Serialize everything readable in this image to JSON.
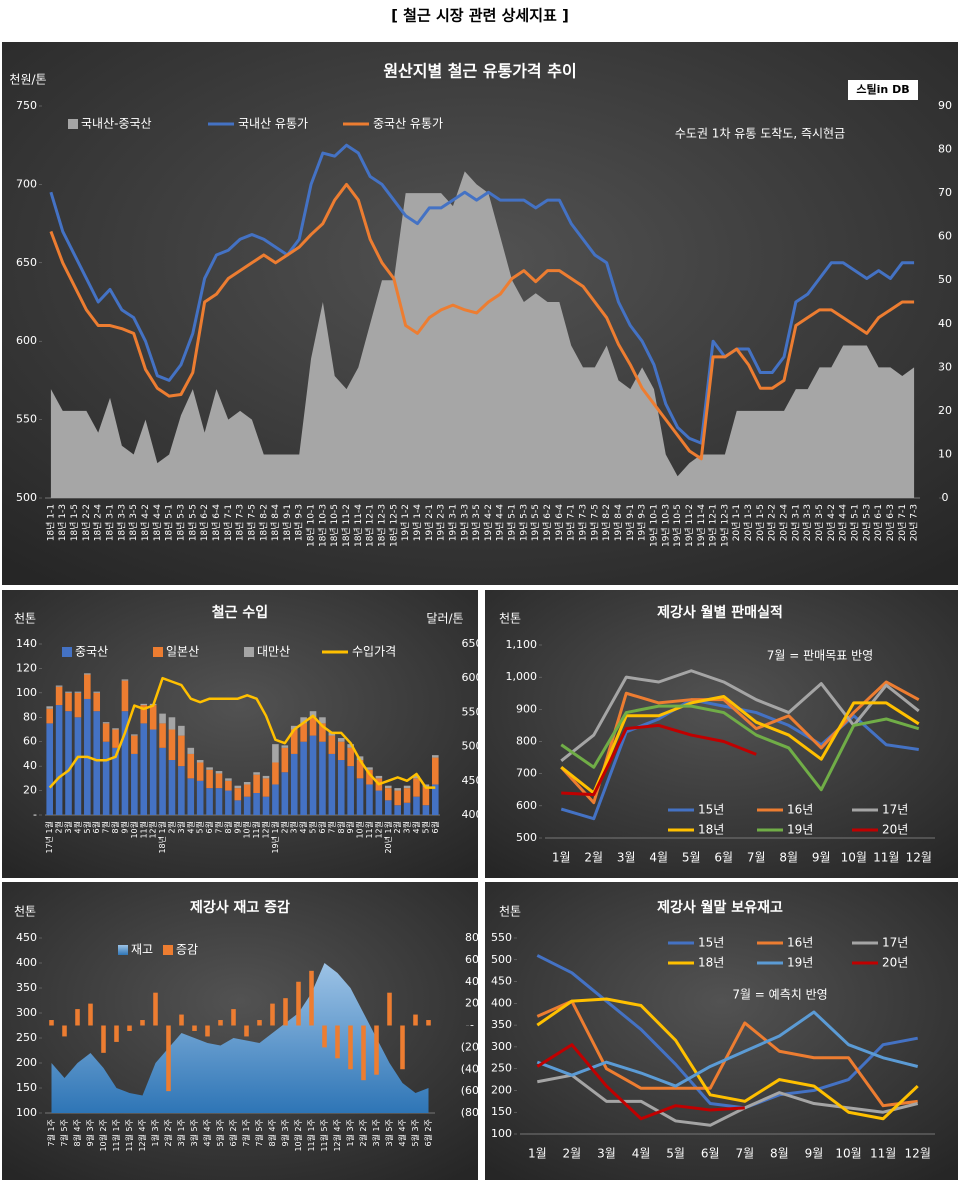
{
  "title": "[ 철근 시장 관련 상세지표 ]",
  "chart_data": [
    {
      "type": "combo",
      "title": "원산지별 철근 유통가격 추이",
      "y_label": "천원/톤",
      "logo": "스틸in DB",
      "annotations": [
        "수도권 1차 유통 도착도, 즉시현금"
      ],
      "categories": [
        "18년 1-1",
        "18년 1-3",
        "18년 1-5",
        "18년 2-2",
        "18년 2-4",
        "18년 3-1",
        "18년 3-3",
        "18년 3-5",
        "18년 4-2",
        "18년 4-4",
        "18년 5-1",
        "18년 5-3",
        "18년 5-5",
        "18년 6-2",
        "18년 6-4",
        "18년 7-1",
        "18년 7-3",
        "18년 7-5",
        "18년 8-2",
        "18년 8-4",
        "18년 9-1",
        "18년 9-3",
        "18년 10-1",
        "18년 10-3",
        "18년 10-5",
        "18년 11-2",
        "18년 11-4",
        "18년 12-1",
        "18년 12-3",
        "18년 12-5",
        "19년 1-2",
        "19년 1-4",
        "19년 2-1",
        "19년 2-3",
        "19년 3-1",
        "19년 3-3",
        "19년 3-5",
        "19년 4-2",
        "19년 4-4",
        "19년 5-1",
        "19년 5-3",
        "19년 5-5",
        "19년 6-2",
        "19년 6-4",
        "19년 7-1",
        "19년 7-3",
        "19년 7-5",
        "19년 8-2",
        "19년 8-4",
        "19년 9-1",
        "19년 9-3",
        "19년 10-1",
        "19년 10-3",
        "19년 10-5",
        "19년 11-2",
        "19년 11-4",
        "19년 12-1",
        "19년 12-3",
        "20년 1-1",
        "20년 1-3",
        "20년 1-5",
        "20년 2-2",
        "20년 2-4",
        "20년 3-1",
        "20년 3-3",
        "20년 3-5",
        "20년 4-2",
        "20년 4-4",
        "20년 5-1",
        "20년 5-3",
        "20년 6-1",
        "20년 6-3",
        "20년 7-1",
        "20년 7-3"
      ],
      "series": [
        {
          "name": "국내산-중국산",
          "kind": "area",
          "axis": "y2",
          "color": "#a6a6a6",
          "values": [
            25,
            20,
            20,
            20,
            15,
            23,
            12,
            10,
            18,
            8,
            10,
            19,
            25,
            15,
            25,
            18,
            20,
            18,
            10,
            10,
            10,
            10,
            32,
            45,
            28,
            25,
            30,
            40,
            50,
            50,
            70,
            70,
            70,
            70,
            67,
            75,
            72,
            70,
            60,
            50,
            45,
            47,
            45,
            45,
            35,
            30,
            30,
            35,
            27,
            25,
            30,
            25,
            10,
            5,
            8,
            10,
            10,
            10,
            20,
            20,
            20,
            20,
            20,
            25,
            25,
            30,
            30,
            35,
            35,
            35,
            30,
            30,
            28,
            30
          ]
        },
        {
          "name": "국내산 유통가",
          "kind": "line",
          "color": "#4472c4",
          "values": [
            695,
            670,
            655,
            640,
            625,
            633,
            620,
            615,
            600,
            578,
            575,
            585,
            605,
            640,
            655,
            658,
            665,
            668,
            665,
            660,
            655,
            665,
            700,
            720,
            718,
            725,
            720,
            705,
            700,
            690,
            680,
            675,
            685,
            685,
            690,
            695,
            690,
            695,
            690,
            690,
            690,
            685,
            690,
            690,
            675,
            665,
            655,
            650,
            625,
            610,
            600,
            585,
            560,
            545,
            538,
            535,
            600,
            590,
            595,
            595,
            580,
            580,
            590,
            625,
            630,
            640,
            650,
            650,
            645,
            640,
            645,
            640,
            650,
            650
          ]
        },
        {
          "name": "중국산 유통가",
          "kind": "line",
          "color": "#ed7d31",
          "values": [
            670,
            650,
            635,
            620,
            610,
            610,
            608,
            605,
            582,
            570,
            565,
            566,
            580,
            625,
            630,
            640,
            645,
            650,
            655,
            650,
            655,
            660,
            668,
            675,
            690,
            700,
            690,
            665,
            650,
            640,
            610,
            605,
            615,
            620,
            623,
            620,
            618,
            625,
            630,
            640,
            645,
            638,
            645,
            645,
            640,
            635,
            625,
            615,
            598,
            585,
            570,
            560,
            550,
            540,
            530,
            525,
            590,
            590,
            595,
            585,
            570,
            570,
            575,
            610,
            615,
            620,
            620,
            615,
            610,
            605,
            615,
            620,
            625,
            625
          ]
        }
      ],
      "ylim": [
        500,
        750
      ],
      "yticks": [
        500,
        550,
        600,
        650,
        700,
        750
      ],
      "y2lim": [
        0,
        90
      ],
      "y2ticks": [
        0,
        10,
        20,
        30,
        40,
        50,
        60,
        70,
        80,
        90
      ]
    },
    {
      "type": "combo",
      "title": "철근 수입",
      "y_label": "천톤",
      "y2_label": "달러/톤",
      "stacked": true,
      "categories": [
        "17년 1월",
        "2월",
        "3월",
        "4월",
        "5월",
        "6월",
        "7월",
        "8월",
        "9월",
        "10월",
        "11월",
        "12월",
        "18년 1월",
        "2월",
        "3월",
        "4월",
        "5월",
        "6월",
        "7월",
        "8월",
        "9월",
        "10월",
        "11월",
        "12월",
        "19년 1월",
        "2월",
        "3월",
        "4월",
        "5월",
        "6월",
        "7월",
        "8월",
        "9월",
        "10월",
        "11월",
        "12월",
        "20년 1월",
        "2월",
        "3월",
        "4월",
        "5월",
        "6월"
      ],
      "series": [
        {
          "name": "중국산",
          "kind": "bar",
          "color": "#4472c4",
          "values": [
            75,
            90,
            85,
            80,
            95,
            85,
            60,
            55,
            85,
            50,
            75,
            70,
            55,
            45,
            40,
            30,
            28,
            22,
            22,
            20,
            12,
            15,
            18,
            15,
            25,
            35,
            50,
            60,
            65,
            60,
            50,
            45,
            40,
            30,
            25,
            20,
            12,
            8,
            10,
            15,
            8,
            25
          ]
        },
        {
          "name": "일본산",
          "kind": "bar",
          "color": "#ed7d31",
          "values": [
            12,
            15,
            15,
            20,
            20,
            15,
            15,
            15,
            25,
            15,
            15,
            20,
            20,
            25,
            25,
            20,
            15,
            15,
            12,
            8,
            10,
            10,
            15,
            15,
            18,
            20,
            20,
            15,
            15,
            15,
            15,
            15,
            15,
            15,
            12,
            10,
            10,
            12,
            12,
            15,
            15,
            22
          ]
        },
        {
          "name": "대만산",
          "kind": "bar",
          "color": "#a5a5a5",
          "values": [
            2,
            1,
            1,
            1,
            1,
            1,
            1,
            1,
            1,
            1,
            1,
            1,
            8,
            10,
            8,
            5,
            2,
            2,
            2,
            2,
            2,
            2,
            2,
            2,
            15,
            2,
            3,
            5,
            5,
            5,
            3,
            3,
            3,
            3,
            2,
            2,
            2,
            2,
            2,
            2,
            2,
            2
          ]
        },
        {
          "name": "수입가격",
          "kind": "line",
          "axis": "y2",
          "color": "#ffc000",
          "values": [
            440,
            455,
            465,
            485,
            485,
            480,
            480,
            485,
            520,
            560,
            555,
            560,
            600,
            595,
            590,
            570,
            565,
            570,
            570,
            570,
            570,
            575,
            570,
            545,
            510,
            505,
            525,
            535,
            545,
            530,
            520,
            520,
            505,
            480,
            460,
            445,
            450,
            455,
            450,
            460,
            440,
            440
          ]
        }
      ],
      "ylim": [
        0,
        140
      ],
      "yticks": [
        {
          "value": 0,
          "label": "-"
        },
        20,
        40,
        60,
        80,
        100,
        120,
        140
      ],
      "y2lim": [
        400,
        650
      ],
      "y2ticks": [
        400,
        450,
        500,
        550,
        600,
        650
      ]
    },
    {
      "type": "line",
      "title": "제강사 월별 판매실적",
      "y_label": "천톤",
      "annotations": [
        "7월 = 판매목표 반영"
      ],
      "categories": [
        "1월",
        "2월",
        "3월",
        "4월",
        "5월",
        "6월",
        "7월",
        "8월",
        "9월",
        "10월",
        "11월",
        "12월"
      ],
      "series": [
        {
          "name": "15년",
          "kind": "line",
          "color": "#4472c4",
          "values": [
            590,
            560,
            830,
            870,
            930,
            910,
            890,
            850,
            790,
            880,
            790,
            775
          ]
        },
        {
          "name": "16년",
          "kind": "line",
          "color": "#ed7d31",
          "values": [
            720,
            610,
            950,
            920,
            930,
            930,
            840,
            880,
            780,
            890,
            985,
            930
          ]
        },
        {
          "name": "17년",
          "kind": "line",
          "color": "#a5a5a5",
          "values": [
            740,
            820,
            1000,
            985,
            1020,
            985,
            930,
            890,
            980,
            850,
            975,
            895
          ]
        },
        {
          "name": "18년",
          "kind": "line",
          "color": "#ffc000",
          "values": [
            720,
            640,
            880,
            880,
            920,
            940,
            860,
            820,
            745,
            920,
            920,
            855
          ]
        },
        {
          "name": "19년",
          "kind": "line",
          "color": "#70ad47",
          "values": [
            790,
            720,
            890,
            910,
            910,
            890,
            820,
            780,
            650,
            850,
            870,
            840
          ]
        },
        {
          "name": "20년",
          "kind": "line",
          "color": "#c00000",
          "values": [
            640,
            635,
            840,
            850,
            820,
            800,
            760,
            null,
            null,
            null,
            null,
            null
          ]
        }
      ],
      "ylim": [
        500,
        1100
      ],
      "yticks": [
        500,
        600,
        700,
        800,
        900,
        {
          "value": 1000,
          "label": "1,000"
        },
        {
          "value": 1100,
          "label": "1,100"
        }
      ]
    },
    {
      "type": "combo",
      "title": "제강사 재고 증감",
      "y_label": "천톤",
      "categories": [
        "7월 1주",
        "7월 5주",
        "8월 4주",
        "9월 3주",
        "10월 2주",
        "11월 1주",
        "11월 5주",
        "12월 4주",
        "1월 3주",
        "2월 2주",
        "3월 1주",
        "3월 5주",
        "4월 4주",
        "5월 3주",
        "6월 2주",
        "7월 1주",
        "7월 5주",
        "8월 4주",
        "9월 3주",
        "10월 2주",
        "11월 1주",
        "11월 5주",
        "12월 4주",
        "1월 3주",
        "2월 2주",
        "3월 1주",
        "3월 5주",
        "4월 4주",
        "5월 3주",
        "6월 2주"
      ],
      "series": [
        {
          "name": "재고",
          "kind": "area",
          "color": "#5b9bd5",
          "values": [
            200,
            170,
            200,
            220,
            190,
            150,
            140,
            135,
            200,
            230,
            260,
            250,
            240,
            235,
            250,
            245,
            240,
            260,
            280,
            300,
            340,
            400,
            380,
            350,
            300,
            250,
            200,
            160,
            140,
            150
          ]
        },
        {
          "name": "증감",
          "kind": "bar",
          "axis": "y2",
          "color": "#ed7d31",
          "values": [
            5,
            -10,
            15,
            20,
            -25,
            -15,
            -5,
            5,
            30,
            -60,
            10,
            -5,
            -10,
            5,
            15,
            -10,
            5,
            20,
            25,
            40,
            50,
            -20,
            -30,
            -40,
            -50,
            -45,
            30,
            -40,
            10,
            5
          ]
        }
      ],
      "ylim": [
        100,
        450
      ],
      "yticks": [
        100,
        150,
        200,
        250,
        300,
        350,
        400,
        450
      ],
      "y2lim": [
        -80,
        80
      ],
      "y2ticks": [
        {
          "value": -80,
          "label": "(80)"
        },
        {
          "value": -60,
          "label": "(60)"
        },
        {
          "value": -40,
          "label": "(40)"
        },
        {
          "value": -20,
          "label": "(20)"
        },
        {
          "value": 0,
          "label": "-"
        },
        20,
        40,
        60,
        80
      ]
    },
    {
      "type": "line",
      "title": "제강사 월말 보유재고",
      "y_label": "천톤",
      "annotations": [
        "7월 = 예측치 반영"
      ],
      "categories": [
        "1월",
        "2월",
        "3월",
        "4월",
        "5월",
        "6월",
        "7월",
        "8월",
        "9월",
        "10월",
        "11월",
        "12월"
      ],
      "series": [
        {
          "name": "15년",
          "kind": "line",
          "color": "#4472c4",
          "values": [
            510,
            470,
            405,
            340,
            260,
            170,
            160,
            190,
            200,
            225,
            305,
            320
          ]
        },
        {
          "name": "16년",
          "kind": "line",
          "color": "#ed7d31",
          "values": [
            370,
            405,
            250,
            205,
            205,
            205,
            355,
            290,
            275,
            275,
            165,
            175
          ]
        },
        {
          "name": "17년",
          "kind": "line",
          "color": "#a5a5a5",
          "values": [
            220,
            235,
            175,
            175,
            130,
            120,
            160,
            195,
            170,
            160,
            150,
            170
          ]
        },
        {
          "name": "18년",
          "kind": "line",
          "color": "#ffc000",
          "values": [
            350,
            405,
            410,
            395,
            315,
            190,
            175,
            225,
            210,
            150,
            135,
            210
          ]
        },
        {
          "name": "19년",
          "kind": "line",
          "color": "#5b9bd5",
          "values": [
            265,
            235,
            265,
            240,
            210,
            255,
            290,
            325,
            380,
            305,
            275,
            255
          ]
        },
        {
          "name": "20년",
          "kind": "line",
          "color": "#c00000",
          "values": [
            255,
            305,
            210,
            135,
            165,
            155,
            160,
            null,
            null,
            null,
            null,
            null
          ]
        }
      ],
      "ylim": [
        100,
        550
      ],
      "yticks": [
        100,
        150,
        200,
        250,
        300,
        350,
        400,
        450,
        500,
        550
      ]
    }
  ]
}
